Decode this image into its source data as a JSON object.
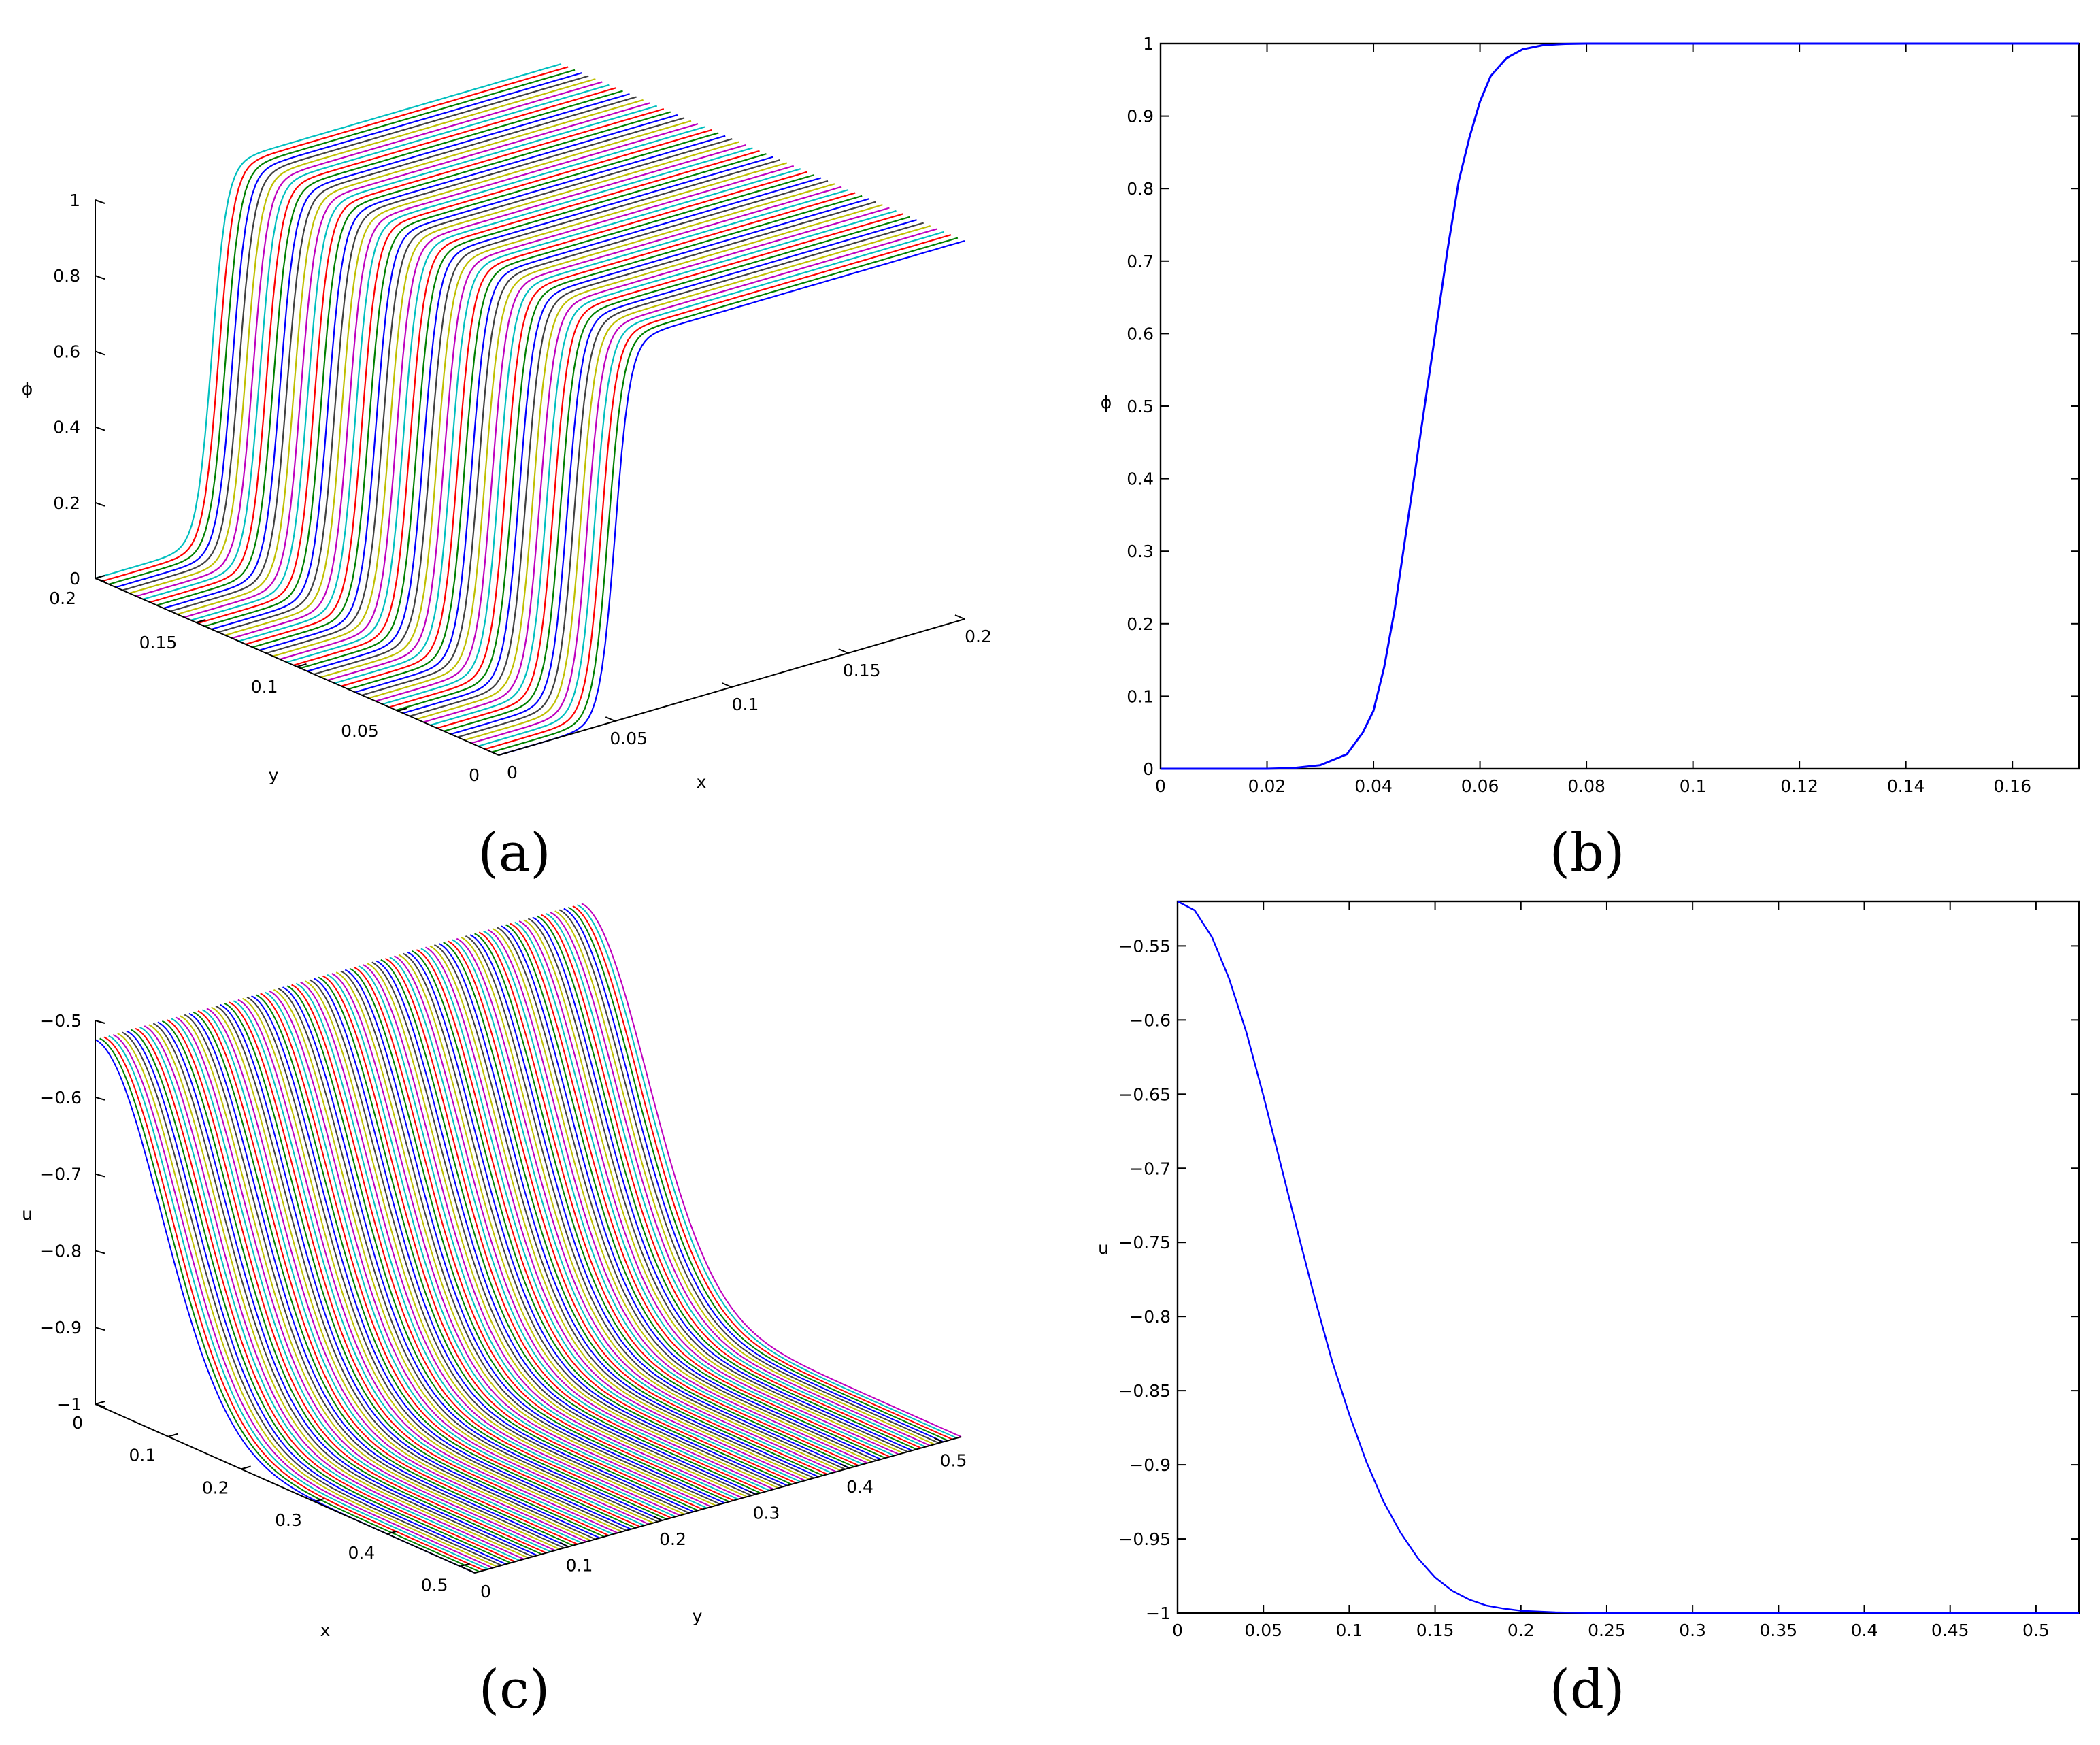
{
  "chart_data": [
    {
      "type": "surface-3d",
      "caption": "(a)",
      "xlabel": "x",
      "ylabel": "y",
      "zlabel": "ϕ",
      "x_ticks": [
        "0",
        "0.05",
        "0.1",
        "0.15",
        "0.2"
      ],
      "y_ticks": [
        "0",
        "0.05",
        "0.1",
        "0.15",
        "0.2"
      ],
      "z_ticks": [
        "0",
        "0.2",
        "0.4",
        "0.6",
        "0.8",
        "1"
      ],
      "xlim": [
        0,
        0.2
      ],
      "ylim": [
        0,
        0.2
      ],
      "zlim": [
        0,
        1
      ],
      "profile": {
        "type": "tanh",
        "center": 0.05,
        "width": 0.0065
      },
      "num_curves": 60,
      "colors": [
        "#0000ff",
        "#008000",
        "#ff0000",
        "#00bfbf",
        "#bf00bf",
        "#bfbf00",
        "#404040"
      ]
    },
    {
      "type": "line",
      "caption": "(b)",
      "xlabel": "",
      "ylabel": "ϕ",
      "x_ticks": [
        "0",
        "0.02",
        "0.04",
        "0.06",
        "0.08",
        "0.1",
        "0.12",
        "0.14",
        "0.16"
      ],
      "y_ticks": [
        "0",
        "0.1",
        "0.2",
        "0.3",
        "0.4",
        "0.5",
        "0.6",
        "0.7",
        "0.8",
        "0.9",
        "1"
      ],
      "xlim": [
        0,
        0.1725
      ],
      "ylim": [
        0,
        1
      ],
      "series": [
        {
          "color": "#0000ff",
          "x": [
            0,
            0.02,
            0.025,
            0.03,
            0.035,
            0.038,
            0.04,
            0.042,
            0.044,
            0.046,
            0.048,
            0.05,
            0.052,
            0.054,
            0.056,
            0.058,
            0.06,
            0.062,
            0.065,
            0.068,
            0.072,
            0.076,
            0.08,
            0.1,
            0.12,
            0.14,
            0.16,
            0.1725
          ],
          "y": [
            0,
            0,
            0.001,
            0.005,
            0.02,
            0.05,
            0.08,
            0.14,
            0.22,
            0.32,
            0.42,
            0.52,
            0.62,
            0.72,
            0.81,
            0.87,
            0.92,
            0.955,
            0.98,
            0.992,
            0.998,
            0.9995,
            1,
            1,
            1,
            1,
            1,
            1
          ]
        }
      ]
    },
    {
      "type": "surface-3d",
      "caption": "(c)",
      "xlabel": "x",
      "ylabel": "y",
      "zlabel": "u",
      "x_ticks": [
        "0",
        "0.1",
        "0.2",
        "0.3",
        "0.4",
        "0.5"
      ],
      "y_ticks": [
        "0",
        "0.1",
        "0.2",
        "0.3",
        "0.4",
        "0.5"
      ],
      "z_ticks": [
        "−1",
        "−0.9",
        "−0.8",
        "−0.7",
        "−0.6",
        "−0.5"
      ],
      "xlim": [
        0,
        0.52
      ],
      "ylim": [
        0,
        0.52
      ],
      "zlim": [
        -1,
        -0.5
      ],
      "profile": {
        "type": "gaussian",
        "min": -1,
        "max": -0.525,
        "sigma": 0.09
      },
      "num_curves": 110,
      "colors": [
        "#0000ff",
        "#008000",
        "#ff0000",
        "#00bfbf",
        "#bf00bf",
        "#bfbf00",
        "#404040"
      ]
    },
    {
      "type": "line",
      "caption": "(d)",
      "xlabel": "",
      "ylabel": "u",
      "x_ticks": [
        "0",
        "0.05",
        "0.1",
        "0.15",
        "0.2",
        "0.25",
        "0.3",
        "0.35",
        "0.4",
        "0.45",
        "0.5"
      ],
      "y_ticks": [
        "−1",
        "−0.95",
        "−0.9",
        "−0.85",
        "−0.8",
        "−0.75",
        "−0.7",
        "−0.65",
        "−0.6",
        "−0.55"
      ],
      "xlim": [
        0,
        0.525
      ],
      "ylim": [
        -1,
        -0.52
      ],
      "series": [
        {
          "color": "#0000ff",
          "x": [
            0,
            0.01,
            0.02,
            0.03,
            0.04,
            0.05,
            0.06,
            0.07,
            0.08,
            0.09,
            0.1,
            0.11,
            0.12,
            0.13,
            0.14,
            0.15,
            0.16,
            0.17,
            0.18,
            0.19,
            0.2,
            0.22,
            0.24,
            0.26,
            0.28,
            0.3,
            0.35,
            0.4,
            0.45,
            0.5,
            0.525
          ],
          "y": [
            -0.52,
            -0.526,
            -0.544,
            -0.572,
            -0.608,
            -0.651,
            -0.697,
            -0.743,
            -0.788,
            -0.83,
            -0.866,
            -0.898,
            -0.925,
            -0.946,
            -0.963,
            -0.976,
            -0.985,
            -0.991,
            -0.995,
            -0.997,
            -0.9985,
            -0.9995,
            -0.9999,
            -1,
            -1,
            -1,
            -1,
            -1,
            -1,
            -1,
            -1
          ]
        }
      ]
    }
  ]
}
